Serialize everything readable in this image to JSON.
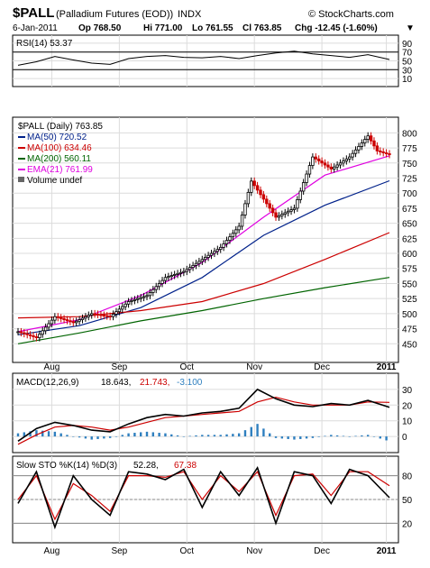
{
  "header": {
    "symbol": "$PALL",
    "name": "(Palladium Futures (EOD))",
    "exchange": "INDX",
    "brand": "© StockCharts.com",
    "date": "6-Jan-2011",
    "quote_op": "Op 768.50",
    "quote_hi": "Hi 771.00",
    "quote_lo": "Lo 761.55",
    "quote_cl": "Cl 763.85",
    "quote_chg": "Chg -12.45 (-1.60%)",
    "chg_arrow": "▼",
    "chg_color": "#cc0000"
  },
  "x_axis": {
    "months": [
      "Aug",
      "Sep",
      "Oct",
      "Nov",
      "Dec",
      "2011"
    ]
  },
  "colors": {
    "up": "#000000",
    "down": "#cc0000",
    "ma50": "#00218a",
    "ma100": "#cc0000",
    "ma200": "#006400",
    "ema21": "#e000e0",
    "rsi_fill": "#2e8b57",
    "macd_hist": "#2e7fbf",
    "signal": "#cc0000"
  },
  "chart_data": [
    {
      "type": "line",
      "panel": "rsi",
      "legend": "RSI(14) 53.37",
      "yticks": [
        90,
        70,
        50,
        30,
        10
      ],
      "ylim": [
        0,
        100
      ],
      "ref_lines": [
        70,
        30
      ],
      "x": [
        0,
        6,
        12,
        18,
        24,
        30,
        36,
        42,
        48,
        54,
        60,
        66,
        72,
        78,
        84,
        90,
        96,
        102,
        108,
        114,
        121
      ],
      "values": [
        40,
        48,
        60,
        52,
        45,
        42,
        55,
        60,
        62,
        58,
        57,
        60,
        55,
        62,
        68,
        72,
        66,
        62,
        58,
        64,
        53
      ]
    },
    {
      "type": "line",
      "panel": "price",
      "ylim": [
        425,
        820
      ],
      "yticks": [
        800,
        775,
        750,
        725,
        700,
        675,
        650,
        625,
        600,
        575,
        550,
        525,
        500,
        475,
        450
      ],
      "legend": {
        "price": "$PALL (Daily) 763.85",
        "ma50": "MA(50) 720.52",
        "ma100": "MA(100) 634.46",
        "ma200": "MA(200) 560.11",
        "ema21": "EMA(21) 761.99",
        "volume": "Volume undef"
      },
      "close": [
        {
          "x": 0,
          "y": 470
        },
        {
          "x": 6,
          "y": 460
        },
        {
          "x": 12,
          "y": 495
        },
        {
          "x": 18,
          "y": 485
        },
        {
          "x": 24,
          "y": 500
        },
        {
          "x": 30,
          "y": 495
        },
        {
          "x": 36,
          "y": 520
        },
        {
          "x": 42,
          "y": 530
        },
        {
          "x": 48,
          "y": 560
        },
        {
          "x": 54,
          "y": 570
        },
        {
          "x": 60,
          "y": 590
        },
        {
          "x": 66,
          "y": 610
        },
        {
          "x": 72,
          "y": 645
        },
        {
          "x": 76,
          "y": 720
        },
        {
          "x": 80,
          "y": 690
        },
        {
          "x": 84,
          "y": 660
        },
        {
          "x": 90,
          "y": 675
        },
        {
          "x": 96,
          "y": 760
        },
        {
          "x": 102,
          "y": 740
        },
        {
          "x": 108,
          "y": 760
        },
        {
          "x": 114,
          "y": 795
        },
        {
          "x": 117,
          "y": 770
        },
        {
          "x": 121,
          "y": 763.85
        }
      ],
      "series": [
        {
          "name": "MA(50)",
          "key": "ma50",
          "x": [
            0,
            20,
            40,
            60,
            80,
            100,
            121
          ],
          "values": [
            465,
            480,
            510,
            560,
            630,
            680,
            720.52
          ]
        },
        {
          "name": "MA(100)",
          "key": "ma100",
          "x": [
            0,
            20,
            40,
            60,
            80,
            100,
            121
          ],
          "values": [
            493,
            495,
            505,
            520,
            550,
            590,
            634.46
          ]
        },
        {
          "name": "MA(200)",
          "key": "ma200",
          "x": [
            0,
            20,
            40,
            60,
            80,
            100,
            121
          ],
          "values": [
            450,
            468,
            488,
            505,
            525,
            543,
            560.11
          ]
        },
        {
          "name": "EMA(21)",
          "key": "ema21",
          "x": [
            0,
            20,
            40,
            60,
            80,
            100,
            121
          ],
          "values": [
            470,
            490,
            530,
            585,
            660,
            730,
            761.99
          ]
        }
      ]
    },
    {
      "type": "line",
      "panel": "macd",
      "legend_label": "MACD(12,26,9)",
      "legend_macd": "18.643,",
      "legend_signal": "21.743,",
      "legend_hist": "-3.100",
      "yticks": [
        30,
        20,
        10,
        0
      ],
      "ylim": [
        -8,
        38
      ],
      "x": [
        0,
        6,
        12,
        18,
        24,
        30,
        36,
        42,
        48,
        54,
        60,
        66,
        72,
        78,
        84,
        90,
        96,
        102,
        108,
        114,
        121
      ],
      "macd": [
        -3,
        5,
        9,
        7,
        4,
        3,
        8,
        12,
        14,
        13,
        15,
        16,
        18,
        30,
        24,
        20,
        19,
        21,
        20,
        23,
        18.643
      ],
      "signal": [
        -5,
        1,
        6,
        7,
        6,
        4,
        6,
        9,
        12,
        13,
        14,
        15,
        16,
        22,
        25,
        22,
        20,
        20,
        20,
        22,
        21.743
      ]
    },
    {
      "type": "line",
      "panel": "stoch",
      "legend_label": "Slow STO %K(14) %D(3)",
      "legend_k": "52.28,",
      "legend_d": "67.38",
      "yticks": [
        80,
        50,
        20
      ],
      "ylim": [
        0,
        100
      ],
      "ref_lines": [
        80,
        50,
        20
      ],
      "x": [
        0,
        6,
        12,
        18,
        24,
        30,
        36,
        42,
        48,
        54,
        60,
        66,
        72,
        78,
        84,
        90,
        96,
        102,
        108,
        114,
        121
      ],
      "k": [
        45,
        85,
        15,
        80,
        50,
        30,
        85,
        82,
        75,
        88,
        40,
        85,
        55,
        90,
        20,
        85,
        80,
        45,
        88,
        80,
        52.28
      ],
      "d": [
        50,
        80,
        25,
        70,
        55,
        35,
        80,
        80,
        78,
        85,
        50,
        80,
        60,
        85,
        30,
        80,
        82,
        55,
        85,
        85,
        67.38
      ]
    }
  ]
}
